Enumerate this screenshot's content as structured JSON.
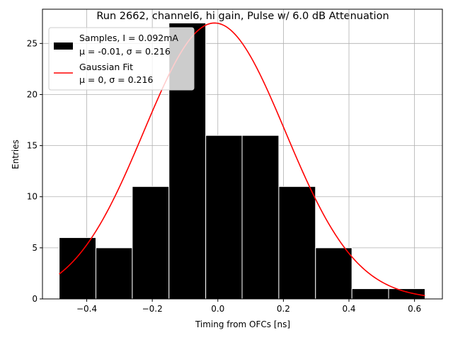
{
  "chart_data": {
    "type": "bar",
    "title": "Run 2662, channel6, hi gain, Pulse w/ 6.0 dB Attenuation",
    "xlabel": "Timing from OFCs [ns]",
    "ylabel": "Entries",
    "xlim": [
      -0.535,
      0.685
    ],
    "ylim": [
      0,
      28.35
    ],
    "grid": true,
    "legend_position": "top-left",
    "xticks": [
      -0.4,
      -0.2,
      0.0,
      0.2,
      0.4,
      0.6
    ],
    "xtick_labels": [
      "−0.4",
      "−0.2",
      "0.0",
      "0.2",
      "0.4",
      "0.6"
    ],
    "yticks": [
      0,
      5,
      10,
      15,
      20,
      25
    ],
    "ytick_labels": [
      "0",
      "5",
      "10",
      "15",
      "20",
      "25"
    ],
    "histogram": {
      "name_line1": "Samples, I = 0.092mA",
      "name_line2": "μ = -0.01, σ = 0.216",
      "color": "#000000",
      "edge_color": "#ffffff",
      "bins": [
        {
          "x0": -0.484,
          "x1": -0.372,
          "count": 6
        },
        {
          "x0": -0.372,
          "x1": -0.261,
          "count": 5
        },
        {
          "x0": -0.261,
          "x1": -0.149,
          "count": 11
        },
        {
          "x0": -0.149,
          "x1": -0.037,
          "count": 27
        },
        {
          "x0": -0.037,
          "x1": 0.074,
          "count": 16
        },
        {
          "x0": 0.074,
          "x1": 0.186,
          "count": 16
        },
        {
          "x0": 0.186,
          "x1": 0.298,
          "count": 11
        },
        {
          "x0": 0.298,
          "x1": 0.409,
          "count": 5
        },
        {
          "x0": 0.409,
          "x1": 0.521,
          "count": 1
        },
        {
          "x0": 0.521,
          "x1": 0.632,
          "count": 1
        }
      ]
    },
    "fit": {
      "name_line1": "Gaussian Fit",
      "name_line2": "μ = 0, σ = 0.216",
      "color": "#ff0000",
      "amplitude": 27,
      "mu": -0.01,
      "sigma": 0.216,
      "x_range": [
        -0.484,
        0.632
      ]
    }
  }
}
